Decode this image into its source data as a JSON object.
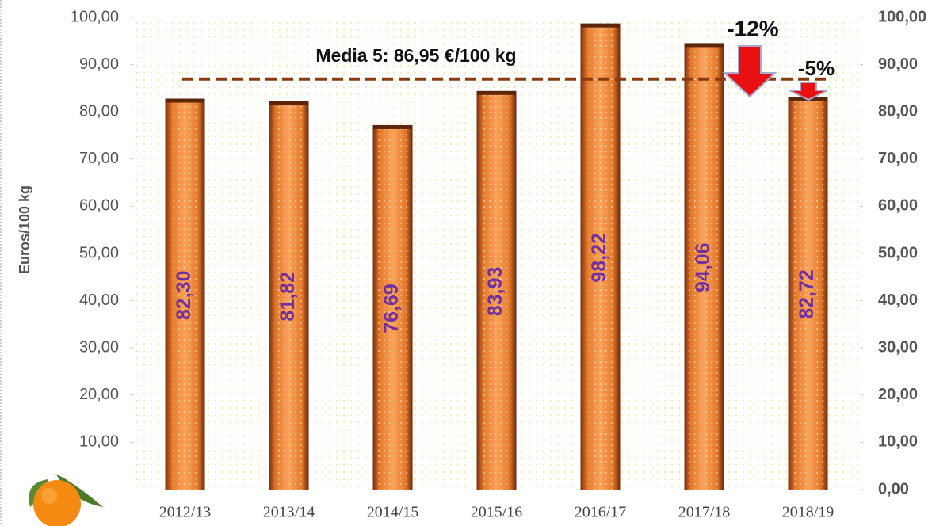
{
  "chart_data": {
    "type": "bar",
    "y_axis_label": "Euros/100 kg",
    "categories": [
      "2012/13",
      "2013/14",
      "2014/15",
      "2015/16",
      "2016/17",
      "2017/18",
      "2018/19"
    ],
    "values": [
      82.3,
      81.82,
      76.69,
      83.93,
      98.22,
      94.06,
      82.72
    ],
    "value_labels": [
      "82,30",
      "81,82",
      "76,69",
      "83,93",
      "98,22",
      "94,06",
      "82,72"
    ],
    "color": "#f08a3a",
    "value_label_color": "#7030a0",
    "ylim": [
      0,
      100
    ],
    "yticks": [
      {
        "value": 10,
        "label": "10,00"
      },
      {
        "value": 20,
        "label": "20,00"
      },
      {
        "value": 30,
        "label": "30,00"
      },
      {
        "value": 40,
        "label": "40,00"
      },
      {
        "value": 50,
        "label": "50,00"
      },
      {
        "value": 60,
        "label": "60,00"
      },
      {
        "value": 70,
        "label": "70,00"
      },
      {
        "value": 80,
        "label": "80,00"
      },
      {
        "value": 90,
        "label": "90,00"
      },
      {
        "value": 100,
        "label": "100,00"
      }
    ],
    "y2lim": [
      0,
      100
    ],
    "y2ticks": [
      {
        "value": 0,
        "label": "0,00"
      },
      {
        "value": 10,
        "label": "10,00"
      },
      {
        "value": 20,
        "label": "20,00"
      },
      {
        "value": 30,
        "label": "30,00"
      },
      {
        "value": 40,
        "label": "40,00"
      },
      {
        "value": 50,
        "label": "50,00"
      },
      {
        "value": 60,
        "label": "60,00"
      },
      {
        "value": 70,
        "label": "70,00"
      },
      {
        "value": 80,
        "label": "80,00"
      },
      {
        "value": 90,
        "label": "90,00"
      },
      {
        "value": 100,
        "label": "100,00"
      }
    ],
    "average_value": 86.95,
    "average_label": "Media 5: 86,95 €/100 kg",
    "annotations": [
      "-12%",
      "-5%"
    ]
  }
}
